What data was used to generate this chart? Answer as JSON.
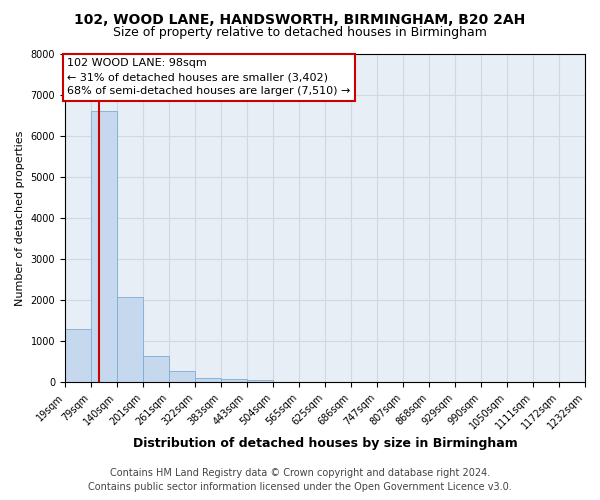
{
  "title1": "102, WOOD LANE, HANDSWORTH, BIRMINGHAM, B20 2AH",
  "title2": "Size of property relative to detached houses in Birmingham",
  "xlabel": "Distribution of detached houses by size in Birmingham",
  "ylabel": "Number of detached properties",
  "footnote1": "Contains HM Land Registry data © Crown copyright and database right 2024.",
  "footnote2": "Contains public sector information licensed under the Open Government Licence v3.0.",
  "annotation_title": "102 WOOD LANE: 98sqm",
  "annotation_line1": "← 31% of detached houses are smaller (3,402)",
  "annotation_line2": "68% of semi-detached houses are larger (7,510) →",
  "property_size": 98,
  "bin_labels": [
    "19sqm",
    "79sqm",
    "140sqm",
    "201sqm",
    "261sqm",
    "322sqm",
    "383sqm",
    "443sqm",
    "504sqm",
    "565sqm",
    "625sqm",
    "686sqm",
    "747sqm",
    "807sqm",
    "868sqm",
    "929sqm",
    "990sqm",
    "1050sqm",
    "1111sqm",
    "1172sqm",
    "1232sqm"
  ],
  "bin_edges": [
    19,
    79,
    140,
    201,
    261,
    322,
    383,
    443,
    504,
    565,
    625,
    686,
    747,
    807,
    868,
    929,
    990,
    1050,
    1111,
    1172,
    1232
  ],
  "bar_values": [
    1300,
    6600,
    2080,
    650,
    270,
    120,
    80,
    55,
    0,
    0,
    0,
    0,
    0,
    0,
    0,
    0,
    0,
    0,
    0,
    0
  ],
  "bar_color": "#c5d8ed",
  "bar_edge_color": "#7aadd4",
  "red_line_x": 98,
  "ylim": [
    0,
    8000
  ],
  "yticks": [
    0,
    1000,
    2000,
    3000,
    4000,
    5000,
    6000,
    7000,
    8000
  ],
  "grid_color": "#d0d8e4",
  "background_color": "#e8eef5",
  "annotation_box_color": "#ffffff",
  "annotation_box_edge": "#cc0000",
  "red_line_color": "#cc0000",
  "title_fontsize": 10,
  "subtitle_fontsize": 9,
  "ylabel_fontsize": 8,
  "xlabel_fontsize": 9,
  "tick_fontsize": 7,
  "annotation_fontsize": 8,
  "footnote_fontsize": 7
}
